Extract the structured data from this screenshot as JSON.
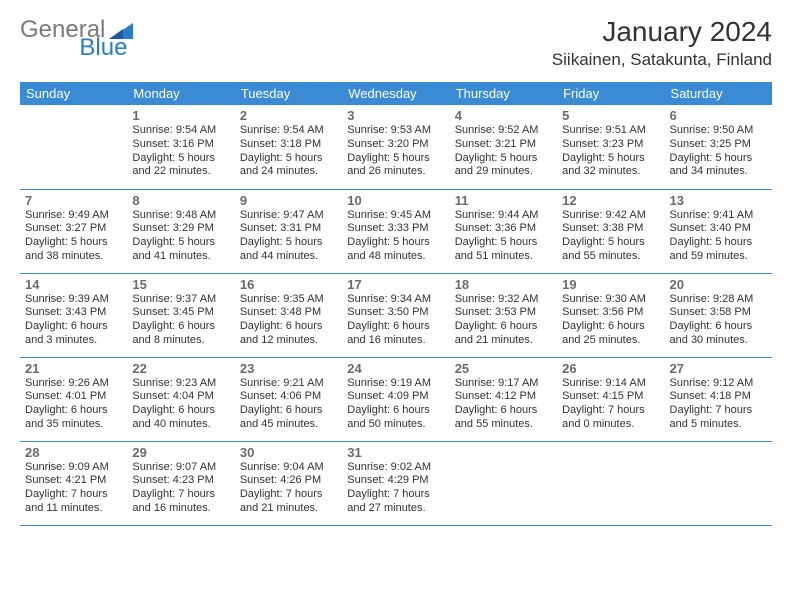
{
  "logo": {
    "general": "General",
    "blue": "Blue",
    "icon_color": "#2b7cc7"
  },
  "title": "January 2024",
  "location": "Siikainen, Satakunta, Finland",
  "colors": {
    "header_bg": "#3b8bd4",
    "header_text": "#ffffff",
    "day_number": "#6b6b6b",
    "body_text": "#333333",
    "row_border": "#3b8bd4",
    "logo_gray": "#7a7a7a",
    "logo_blue": "#2b7cc7"
  },
  "day_headers": [
    "Sunday",
    "Monday",
    "Tuesday",
    "Wednesday",
    "Thursday",
    "Friday",
    "Saturday"
  ],
  "weeks": [
    [
      null,
      {
        "n": "1",
        "sr": "9:54 AM",
        "ss": "3:16 PM",
        "dl": "5 hours and 22 minutes."
      },
      {
        "n": "2",
        "sr": "9:54 AM",
        "ss": "3:18 PM",
        "dl": "5 hours and 24 minutes."
      },
      {
        "n": "3",
        "sr": "9:53 AM",
        "ss": "3:20 PM",
        "dl": "5 hours and 26 minutes."
      },
      {
        "n": "4",
        "sr": "9:52 AM",
        "ss": "3:21 PM",
        "dl": "5 hours and 29 minutes."
      },
      {
        "n": "5",
        "sr": "9:51 AM",
        "ss": "3:23 PM",
        "dl": "5 hours and 32 minutes."
      },
      {
        "n": "6",
        "sr": "9:50 AM",
        "ss": "3:25 PM",
        "dl": "5 hours and 34 minutes."
      }
    ],
    [
      {
        "n": "7",
        "sr": "9:49 AM",
        "ss": "3:27 PM",
        "dl": "5 hours and 38 minutes."
      },
      {
        "n": "8",
        "sr": "9:48 AM",
        "ss": "3:29 PM",
        "dl": "5 hours and 41 minutes."
      },
      {
        "n": "9",
        "sr": "9:47 AM",
        "ss": "3:31 PM",
        "dl": "5 hours and 44 minutes."
      },
      {
        "n": "10",
        "sr": "9:45 AM",
        "ss": "3:33 PM",
        "dl": "5 hours and 48 minutes."
      },
      {
        "n": "11",
        "sr": "9:44 AM",
        "ss": "3:36 PM",
        "dl": "5 hours and 51 minutes."
      },
      {
        "n": "12",
        "sr": "9:42 AM",
        "ss": "3:38 PM",
        "dl": "5 hours and 55 minutes."
      },
      {
        "n": "13",
        "sr": "9:41 AM",
        "ss": "3:40 PM",
        "dl": "5 hours and 59 minutes."
      }
    ],
    [
      {
        "n": "14",
        "sr": "9:39 AM",
        "ss": "3:43 PM",
        "dl": "6 hours and 3 minutes."
      },
      {
        "n": "15",
        "sr": "9:37 AM",
        "ss": "3:45 PM",
        "dl": "6 hours and 8 minutes."
      },
      {
        "n": "16",
        "sr": "9:35 AM",
        "ss": "3:48 PM",
        "dl": "6 hours and 12 minutes."
      },
      {
        "n": "17",
        "sr": "9:34 AM",
        "ss": "3:50 PM",
        "dl": "6 hours and 16 minutes."
      },
      {
        "n": "18",
        "sr": "9:32 AM",
        "ss": "3:53 PM",
        "dl": "6 hours and 21 minutes."
      },
      {
        "n": "19",
        "sr": "9:30 AM",
        "ss": "3:56 PM",
        "dl": "6 hours and 25 minutes."
      },
      {
        "n": "20",
        "sr": "9:28 AM",
        "ss": "3:58 PM",
        "dl": "6 hours and 30 minutes."
      }
    ],
    [
      {
        "n": "21",
        "sr": "9:26 AM",
        "ss": "4:01 PM",
        "dl": "6 hours and 35 minutes."
      },
      {
        "n": "22",
        "sr": "9:23 AM",
        "ss": "4:04 PM",
        "dl": "6 hours and 40 minutes."
      },
      {
        "n": "23",
        "sr": "9:21 AM",
        "ss": "4:06 PM",
        "dl": "6 hours and 45 minutes."
      },
      {
        "n": "24",
        "sr": "9:19 AM",
        "ss": "4:09 PM",
        "dl": "6 hours and 50 minutes."
      },
      {
        "n": "25",
        "sr": "9:17 AM",
        "ss": "4:12 PM",
        "dl": "6 hours and 55 minutes."
      },
      {
        "n": "26",
        "sr": "9:14 AM",
        "ss": "4:15 PM",
        "dl": "7 hours and 0 minutes."
      },
      {
        "n": "27",
        "sr": "9:12 AM",
        "ss": "4:18 PM",
        "dl": "7 hours and 5 minutes."
      }
    ],
    [
      {
        "n": "28",
        "sr": "9:09 AM",
        "ss": "4:21 PM",
        "dl": "7 hours and 11 minutes."
      },
      {
        "n": "29",
        "sr": "9:07 AM",
        "ss": "4:23 PM",
        "dl": "7 hours and 16 minutes."
      },
      {
        "n": "30",
        "sr": "9:04 AM",
        "ss": "4:26 PM",
        "dl": "7 hours and 21 minutes."
      },
      {
        "n": "31",
        "sr": "9:02 AM",
        "ss": "4:29 PM",
        "dl": "7 hours and 27 minutes."
      },
      null,
      null,
      null
    ]
  ],
  "labels": {
    "sunrise": "Sunrise:",
    "sunset": "Sunset:",
    "daylight": "Daylight:"
  }
}
